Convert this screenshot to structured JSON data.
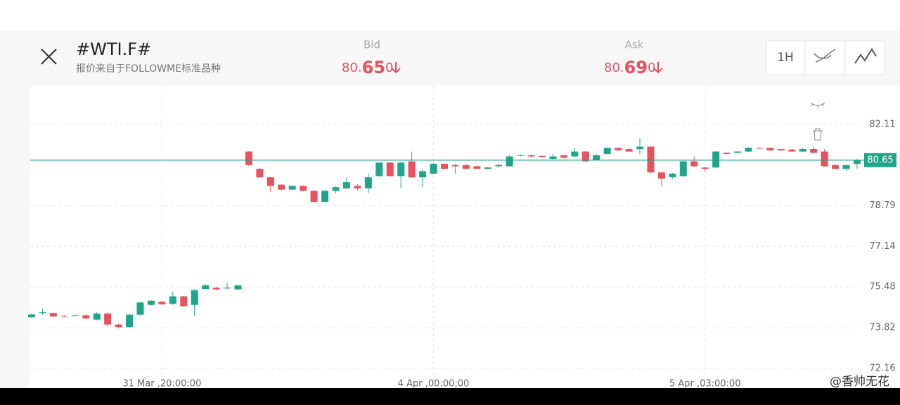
{
  "header": {
    "symbol": "#WTI.F#",
    "source": "报价来自于FOLLOWME标准品种",
    "bid": {
      "label": "Bid",
      "price": [
        "80.",
        "65",
        "0"
      ]
    },
    "ask": {
      "label": "Ask",
      "price": [
        "80.",
        "69",
        "0"
      ]
    },
    "timeframe": "1H"
  },
  "watermark": "@香帅无花",
  "chart_data": {
    "type": "candlestick",
    "up_color": "#1fa58a",
    "down_color": "#e8515d",
    "ylim": [
      71.36,
      83.68
    ],
    "yticks": [
      82.11,
      78.79,
      77.14,
      75.48,
      73.82,
      72.16
    ],
    "grid": true,
    "xlim": [
      -0.13,
      81.7
    ],
    "xticks": [
      {
        "value": 12,
        "label": "31 Mar ,20:00:00"
      },
      {
        "value": 37,
        "label": "4 Apr ,00:00:00"
      },
      {
        "value": 62,
        "label": "5 Apr ,03:00:00"
      }
    ],
    "price_line": 80.65,
    "open": [
      74.25,
      74.42,
      74.42,
      74.3,
      74.32,
      74.33,
      74.15,
      74.4,
      73.95,
      73.85,
      74.35,
      74.75,
      74.88,
      74.8,
      75.1,
      74.75,
      75.4,
      75.45,
      75.42,
      75.38,
      81.0,
      80.3,
      79.95,
      79.65,
      79.45,
      79.6,
      79.4,
      78.95,
      79.4,
      79.5,
      79.6,
      79.5,
      80.0,
      80.55,
      80.0,
      80.6,
      79.95,
      80.1,
      80.5,
      80.45,
      80.45,
      80.4,
      80.3,
      80.4,
      80.4,
      80.82,
      80.85,
      80.82,
      80.7,
      80.85,
      80.8,
      81.0,
      80.65,
      80.9,
      81.15,
      81.1,
      81.1,
      81.2,
      80.15,
      79.95,
      80.0,
      80.6,
      80.35,
      80.35,
      80.95,
      80.95,
      81.0,
      81.15,
      81.15,
      81.1,
      81.08,
      81.0,
      81.1,
      81.0,
      80.45,
      80.3,
      80.5
    ],
    "close": [
      74.36,
      74.45,
      74.28,
      74.28,
      74.33,
      74.2,
      74.4,
      73.95,
      73.85,
      74.35,
      74.85,
      74.92,
      74.78,
      75.1,
      74.7,
      75.35,
      75.55,
      75.38,
      75.45,
      75.55,
      80.45,
      79.95,
      79.6,
      79.45,
      79.6,
      79.4,
      78.95,
      79.4,
      79.55,
      79.75,
      79.5,
      79.95,
      80.55,
      80.0,
      80.55,
      79.95,
      80.2,
      80.5,
      80.3,
      80.4,
      80.3,
      80.3,
      80.35,
      80.45,
      80.8,
      80.85,
      80.8,
      80.78,
      80.8,
      80.75,
      81.0,
      80.6,
      80.85,
      81.15,
      81.05,
      81.0,
      81.2,
      80.15,
      79.9,
      80.1,
      80.6,
      80.4,
      80.3,
      81.0,
      80.9,
      81.0,
      81.15,
      81.13,
      81.05,
      81.05,
      81.0,
      81.1,
      80.95,
      80.4,
      80.3,
      80.45,
      80.65
    ],
    "high": [
      74.4,
      74.6,
      74.45,
      74.33,
      74.36,
      74.36,
      74.45,
      74.45,
      73.98,
      74.4,
      74.88,
      74.95,
      74.92,
      75.3,
      75.12,
      75.4,
      75.6,
      75.48,
      75.65,
      75.57,
      81.02,
      80.32,
      79.97,
      79.68,
      79.62,
      79.62,
      79.42,
      79.42,
      79.58,
      79.95,
      79.68,
      80.1,
      80.57,
      80.57,
      80.6,
      81.0,
      80.25,
      80.55,
      80.52,
      80.5,
      80.5,
      80.42,
      80.38,
      80.5,
      80.85,
      80.88,
      80.88,
      80.85,
      80.9,
      80.88,
      81.15,
      81.02,
      80.88,
      81.17,
      81.17,
      81.15,
      81.55,
      81.22,
      80.17,
      80.13,
      80.62,
      80.8,
      80.37,
      81.02,
      80.97,
      81.02,
      81.17,
      81.17,
      81.17,
      81.12,
      81.1,
      81.15,
      81.2,
      81.1,
      80.47,
      80.47,
      80.7
    ],
    "low": [
      74.2,
      74.35,
      74.25,
      74.25,
      74.3,
      74.18,
      74.12,
      73.85,
      73.8,
      73.82,
      74.33,
      74.72,
      74.75,
      74.75,
      74.65,
      74.3,
      75.38,
      75.35,
      75.4,
      75.36,
      80.42,
      79.93,
      79.35,
      79.43,
      79.43,
      79.38,
      78.93,
      78.93,
      79.3,
      79.48,
      79.42,
      79.3,
      79.98,
      79.98,
      79.5,
      79.93,
      79.55,
      80.08,
      80.28,
      80.1,
      80.25,
      80.28,
      80.28,
      80.35,
      80.38,
      80.8,
      80.75,
      80.75,
      80.68,
      80.72,
      80.78,
      80.58,
      80.63,
      80.88,
      81.03,
      80.98,
      80.9,
      80.13,
      79.6,
      79.9,
      79.98,
      80.38,
      80.2,
      80.33,
      80.88,
      80.93,
      80.98,
      81.1,
      81.03,
      81.03,
      80.98,
      80.98,
      80.93,
      80.38,
      80.28,
      80.2,
      80.3
    ]
  }
}
